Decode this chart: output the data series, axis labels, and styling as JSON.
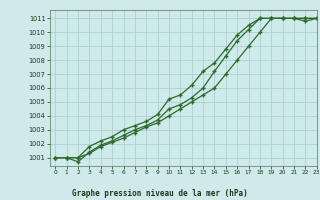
{
  "xlabel": "Graphe pression niveau de la mer (hPa)",
  "bg_color": "#ceeaea",
  "grid_color": "#aacaca",
  "line_color": "#2d6a2d",
  "xlim": [
    -0.5,
    23
  ],
  "ylim": [
    1000.4,
    1011.6
  ],
  "yticks": [
    1001,
    1002,
    1003,
    1004,
    1005,
    1006,
    1007,
    1008,
    1009,
    1010,
    1011
  ],
  "xticks": [
    0,
    1,
    2,
    3,
    4,
    5,
    6,
    7,
    8,
    9,
    10,
    11,
    12,
    13,
    14,
    15,
    16,
    17,
    18,
    19,
    20,
    21,
    22,
    23
  ],
  "series1_x": [
    0,
    1,
    2,
    3,
    4,
    5,
    6,
    7,
    8,
    9,
    10,
    11,
    12,
    13,
    14,
    15,
    16,
    17,
    18,
    19,
    20,
    21,
    22,
    23
  ],
  "series1_y": [
    1001,
    1001,
    1001,
    1001.3,
    1001.8,
    1002.1,
    1002.4,
    1002.8,
    1003.2,
    1003.5,
    1004.0,
    1004.5,
    1005.0,
    1005.5,
    1006.0,
    1007.0,
    1008.0,
    1009.0,
    1010.0,
    1011.0,
    1011.0,
    1011.0,
    1010.8,
    1011.0
  ],
  "series2_x": [
    0,
    1,
    2,
    3,
    4,
    5,
    6,
    7,
    8,
    9,
    10,
    11,
    12,
    13,
    14,
    15,
    16,
    17,
    18,
    19,
    20,
    21,
    22,
    23
  ],
  "series2_y": [
    1001,
    1001,
    1000.7,
    1001.4,
    1001.9,
    1002.2,
    1002.6,
    1003.0,
    1003.3,
    1003.7,
    1004.5,
    1004.8,
    1005.3,
    1006.0,
    1007.2,
    1008.3,
    1009.4,
    1010.2,
    1011.0,
    1011.0,
    1011.0,
    1011.0,
    1011.0,
    1011.0
  ],
  "series3_x": [
    0,
    1,
    2,
    3,
    4,
    5,
    6,
    7,
    8,
    9,
    10,
    11,
    12,
    13,
    14,
    15,
    16,
    17,
    18,
    19,
    20,
    21,
    22,
    23
  ],
  "series3_y": [
    1001,
    1001,
    1001.0,
    1001.8,
    1002.2,
    1002.5,
    1003.0,
    1003.3,
    1003.6,
    1004.1,
    1005.2,
    1005.5,
    1006.2,
    1007.2,
    1007.8,
    1008.8,
    1009.8,
    1010.5,
    1011.0,
    1011.0,
    1011.0,
    1011.0,
    1011.0,
    1011.0
  ]
}
